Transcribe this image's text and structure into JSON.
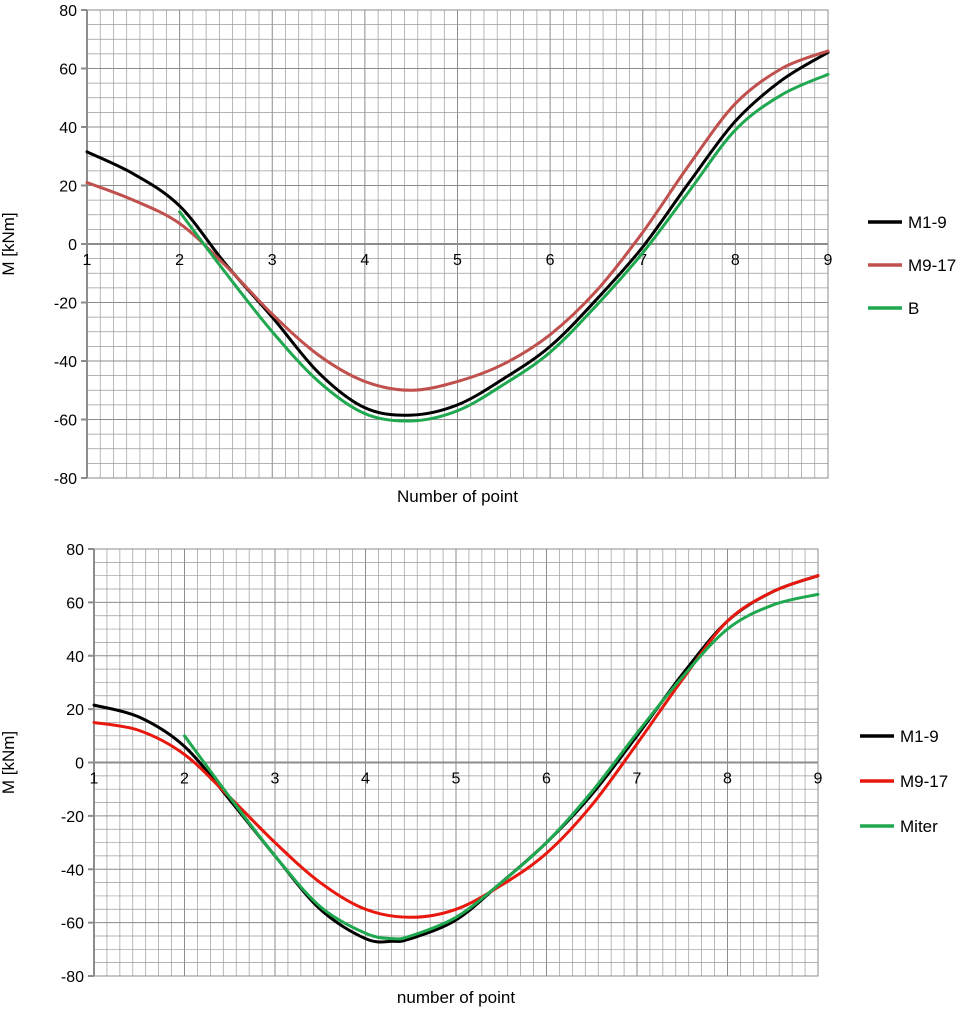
{
  "chart_data": [
    {
      "type": "line",
      "title": "",
      "xlabel": "Number  of  point",
      "ylabel": "M  [kNm]",
      "xlim": [
        1,
        9
      ],
      "ylim": [
        -80,
        80
      ],
      "x_ticks": [
        "1",
        "2",
        "3",
        "4",
        "5",
        "6",
        "7",
        "8",
        "9"
      ],
      "y_ticks": [
        "80",
        "60",
        "40",
        "20",
        "0",
        "-20",
        "-40",
        "-60",
        "-80"
      ],
      "grid": true,
      "legend_position": "right",
      "series": [
        {
          "name": "M1-9",
          "color": "#000000",
          "x": [
            1,
            1.5,
            2,
            2.5,
            3,
            3.5,
            4,
            4.5,
            5,
            5.5,
            6,
            6.5,
            7,
            7.5,
            8,
            8.5,
            9
          ],
          "y": [
            31.5,
            24,
            13,
            -7,
            -25,
            -44,
            -56,
            -58.5,
            -55,
            -46,
            -35,
            -19,
            -1,
            21,
            42,
            56,
            65.5
          ]
        },
        {
          "name": "M9-17",
          "color": "#c0504d",
          "x": [
            1,
            1.5,
            2,
            2.5,
            3,
            3.5,
            4,
            4.5,
            5,
            5.5,
            6,
            6.5,
            7,
            7.5,
            8,
            8.5,
            9
          ],
          "y": [
            21,
            15,
            7,
            -7.5,
            -24,
            -38,
            -47,
            -50,
            -47,
            -41,
            -31,
            -16,
            4,
            27,
            48,
            60,
            66
          ]
        },
        {
          "name": "B",
          "color": "#1fa84f",
          "x": [
            2,
            2.5,
            3,
            3.5,
            4,
            4.5,
            5,
            5.5,
            6,
            6.5,
            7,
            7.5,
            8,
            8.5,
            9
          ],
          "y": [
            11,
            -10,
            -30,
            -47,
            -58,
            -60.5,
            -57,
            -48,
            -37,
            -21,
            -3,
            18,
            39,
            51,
            58
          ]
        }
      ]
    },
    {
      "type": "line",
      "title": "",
      "xlabel": "number  of  point",
      "ylabel": "M  [kNm]",
      "xlim": [
        1,
        9
      ],
      "ylim": [
        -80,
        80
      ],
      "x_ticks": [
        "1",
        "2",
        "3",
        "4",
        "5",
        "6",
        "7",
        "8",
        "9"
      ],
      "y_ticks": [
        "80",
        "60",
        "40",
        "20",
        "0",
        "-20",
        "-40",
        "-60",
        "-80"
      ],
      "grid": true,
      "legend_position": "right",
      "series": [
        {
          "name": "M1-9",
          "color": "#000000",
          "x": [
            1,
            1.5,
            2,
            2.5,
            3,
            3.5,
            4,
            4.3,
            4.5,
            5,
            5.5,
            6,
            6.5,
            7,
            7.5,
            8,
            8.5,
            9
          ],
          "y": [
            21.5,
            17,
            6,
            -14,
            -35,
            -55,
            -66,
            -67,
            -66,
            -59,
            -45,
            -30,
            -12,
            10,
            33,
            53,
            64,
            70
          ]
        },
        {
          "name": "M9-17",
          "color": "#e8180f",
          "x": [
            1,
            1.5,
            2,
            2.5,
            3,
            3.5,
            4,
            4.5,
            5,
            5.5,
            6,
            6.5,
            7,
            7.5,
            8,
            8.5,
            9
          ],
          "y": [
            15,
            12,
            3,
            -13,
            -30,
            -45,
            -55,
            -58,
            -55,
            -46,
            -34,
            -16,
            7,
            31,
            53,
            64,
            70
          ]
        },
        {
          "name": "Miter",
          "color": "#1fa84f",
          "x": [
            2,
            2.5,
            3,
            3.5,
            4,
            4.3,
            4.5,
            5,
            5.5,
            6,
            6.5,
            7,
            7.5,
            8,
            8.5,
            9
          ],
          "y": [
            10,
            -13,
            -35,
            -54,
            -64,
            -66,
            -65,
            -58,
            -45,
            -30,
            -11,
            11,
            32,
            50,
            59,
            63
          ]
        }
      ]
    }
  ]
}
